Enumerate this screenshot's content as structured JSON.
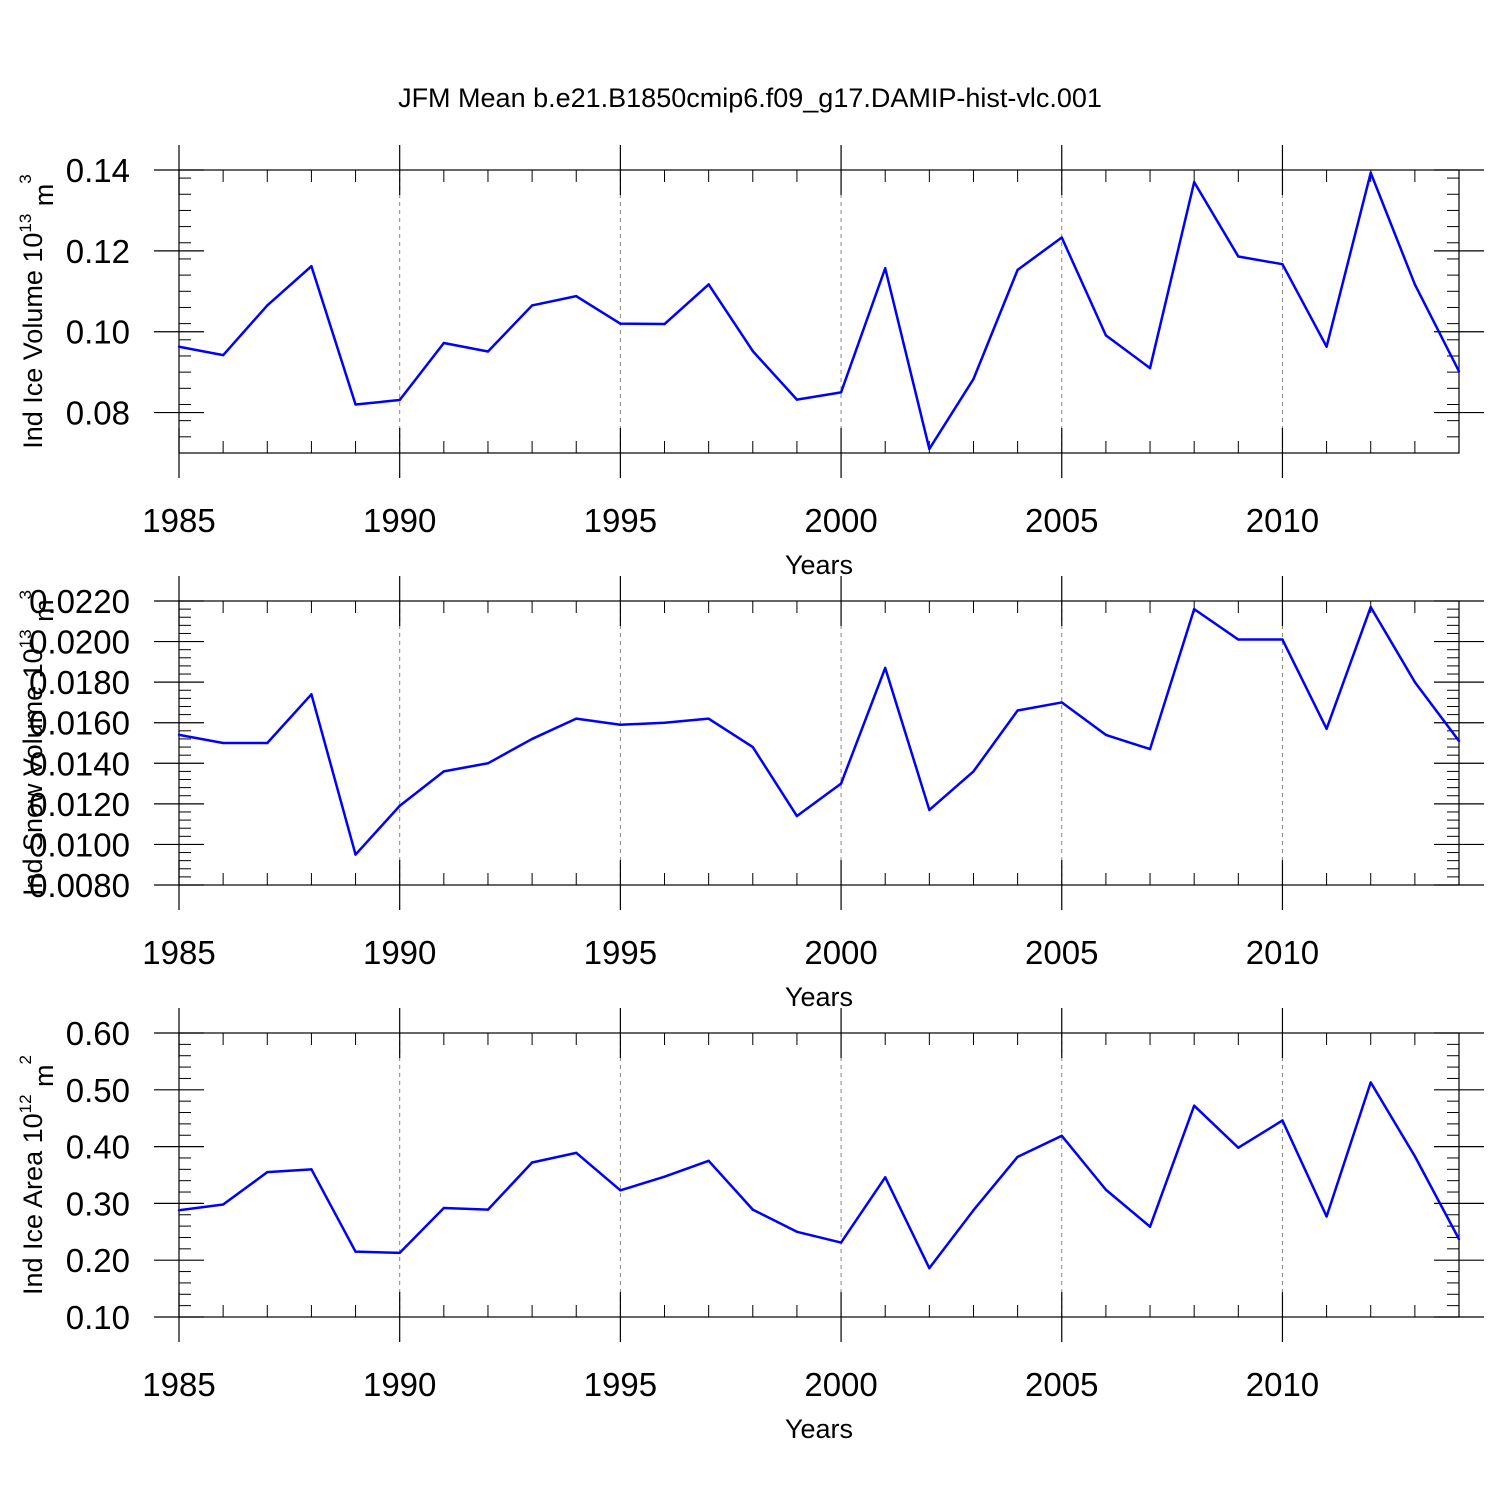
{
  "title": "JFM Mean b.e21.B1850cmip6.f09_g17.DAMIP-hist-vlc.001",
  "colors": {
    "line": "#0000ff",
    "axis": "#000000",
    "grid": "#888888",
    "background": "#ffffff"
  },
  "chart_data": [
    {
      "type": "line",
      "ylabel": {
        "main": "Ind Ice Volume 10",
        "exp": "13",
        "unit": " m",
        "unit_exp": "3"
      },
      "xlabel": "Years",
      "xlim": [
        1985,
        2014
      ],
      "ylim": [
        0.07,
        0.14
      ],
      "yticks": [
        0.08,
        0.1,
        0.12,
        0.14
      ],
      "ytick_labels": [
        "0.08",
        "0.10",
        "0.12",
        "0.14"
      ],
      "xticks": [
        1985,
        1990,
        1995,
        2000,
        2005,
        2010
      ],
      "xtick_labels": [
        "1985",
        "1990",
        "1995",
        "2000",
        "2005",
        "2010"
      ],
      "grid_x": [
        1990,
        1995,
        2000,
        2005,
        2010
      ],
      "x": [
        1985,
        1986,
        1987,
        1988,
        1989,
        1990,
        1991,
        1992,
        1993,
        1994,
        1995,
        1996,
        1997,
        1998,
        1999,
        2000,
        2001,
        2002,
        2003,
        2004,
        2005,
        2006,
        2007,
        2008,
        2009,
        2010,
        2011,
        2012,
        2013,
        2014
      ],
      "values": [
        0.0963,
        0.0942,
        0.1065,
        0.1162,
        0.082,
        0.0831,
        0.0972,
        0.0951,
        0.1065,
        0.1088,
        0.102,
        0.1019,
        0.1117,
        0.0952,
        0.0832,
        0.085,
        0.1157,
        0.071,
        0.0883,
        0.1153,
        0.1233,
        0.0991,
        0.091,
        0.137,
        0.1186,
        0.1167,
        0.0963,
        0.1393,
        0.1117,
        0.0902
      ]
    },
    {
      "type": "line",
      "ylabel": {
        "main": "Ind Snow Volume 10",
        "exp": "13",
        "unit": " m",
        "unit_exp": "3"
      },
      "xlabel": "Years",
      "xlim": [
        1985,
        2014
      ],
      "ylim": [
        0.008,
        0.022
      ],
      "yticks": [
        0.008,
        0.01,
        0.012,
        0.014,
        0.016,
        0.018,
        0.02,
        0.022
      ],
      "ytick_labels": [
        "0.0080",
        "0.0100",
        "0.0120",
        "0.0140",
        "0.0160",
        "0.0180",
        "0.0200",
        "0.0220"
      ],
      "xticks": [
        1985,
        1990,
        1995,
        2000,
        2005,
        2010
      ],
      "xtick_labels": [
        "1985",
        "1990",
        "1995",
        "2000",
        "2005",
        "2010"
      ],
      "grid_x": [
        1990,
        1995,
        2000,
        2005,
        2010
      ],
      "x": [
        1985,
        1986,
        1987,
        1988,
        1989,
        1990,
        1991,
        1992,
        1993,
        1994,
        1995,
        1996,
        1997,
        1998,
        1999,
        2000,
        2001,
        2002,
        2003,
        2004,
        2005,
        2006,
        2007,
        2008,
        2009,
        2010,
        2011,
        2012,
        2013,
        2014
      ],
      "values": [
        0.0154,
        0.015,
        0.015,
        0.0174,
        0.0095,
        0.0119,
        0.0136,
        0.014,
        0.0152,
        0.0162,
        0.0159,
        0.016,
        0.0162,
        0.0148,
        0.0114,
        0.013,
        0.0187,
        0.0117,
        0.0136,
        0.0166,
        0.017,
        0.0154,
        0.0147,
        0.0216,
        0.0201,
        0.0201,
        0.0157,
        0.0217,
        0.018,
        0.0151
      ]
    },
    {
      "type": "line",
      "ylabel": {
        "main": "Ind Ice Area 10",
        "exp": "12",
        "unit": " m",
        "unit_exp": "2"
      },
      "xlabel": "Years",
      "xlim": [
        1985,
        2014
      ],
      "ylim": [
        0.1,
        0.6
      ],
      "yticks": [
        0.1,
        0.2,
        0.3,
        0.4,
        0.5,
        0.6
      ],
      "ytick_labels": [
        "0.10",
        "0.20",
        "0.30",
        "0.40",
        "0.50",
        "0.60"
      ],
      "xticks": [
        1985,
        1990,
        1995,
        2000,
        2005,
        2010
      ],
      "xtick_labels": [
        "1985",
        "1990",
        "1995",
        "2000",
        "2005",
        "2010"
      ],
      "grid_x": [
        1990,
        1995,
        2000,
        2005,
        2010
      ],
      "x": [
        1985,
        1986,
        1987,
        1988,
        1989,
        1990,
        1991,
        1992,
        1993,
        1994,
        1995,
        1996,
        1997,
        1998,
        1999,
        2000,
        2001,
        2002,
        2003,
        2004,
        2005,
        2006,
        2007,
        2008,
        2009,
        2010,
        2011,
        2012,
        2013,
        2014
      ],
      "values": [
        0.288,
        0.298,
        0.355,
        0.36,
        0.215,
        0.213,
        0.292,
        0.289,
        0.372,
        0.389,
        0.323,
        0.347,
        0.375,
        0.289,
        0.25,
        0.231,
        0.346,
        0.186,
        0.288,
        0.382,
        0.419,
        0.324,
        0.259,
        0.472,
        0.398,
        0.446,
        0.277,
        0.513,
        0.383,
        0.237
      ]
    }
  ]
}
